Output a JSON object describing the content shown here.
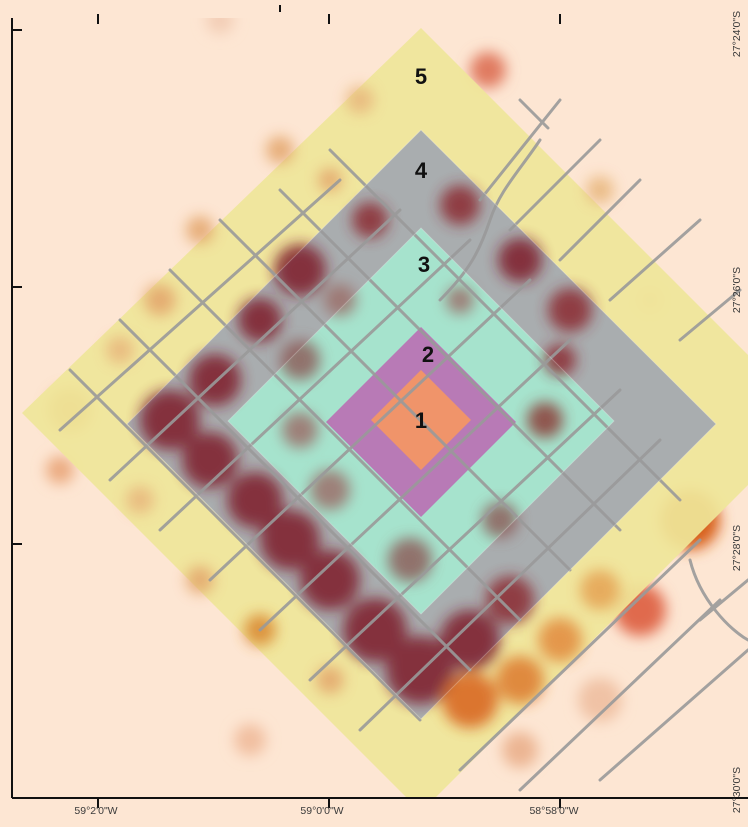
{
  "map": {
    "zones": [
      {
        "label": "1",
        "color": "#f0946a"
      },
      {
        "label": "2",
        "color": "#b87ab6"
      },
      {
        "label": "3",
        "color": "#a6e3cd"
      },
      {
        "label": "4",
        "color": "#a9adaf"
      },
      {
        "label": "5",
        "color": "#efe699"
      }
    ],
    "longitude_ticks": [
      "59°2'0\"W",
      "59°0'0\"W",
      "58°58'0\"W"
    ],
    "latitude_ticks": [
      "27°24'0\"S",
      "27°26'0\"S",
      "27°28'0\"S",
      "27°30'0\"S"
    ],
    "colors": {
      "background": "#fde6d3",
      "hotspot_dark": "#7e1f2c",
      "hotspot_orange": "#d8621c",
      "hotspot_red": "#d9412d",
      "street_lines": "#9a9a9a",
      "frame": "#111111"
    }
  }
}
